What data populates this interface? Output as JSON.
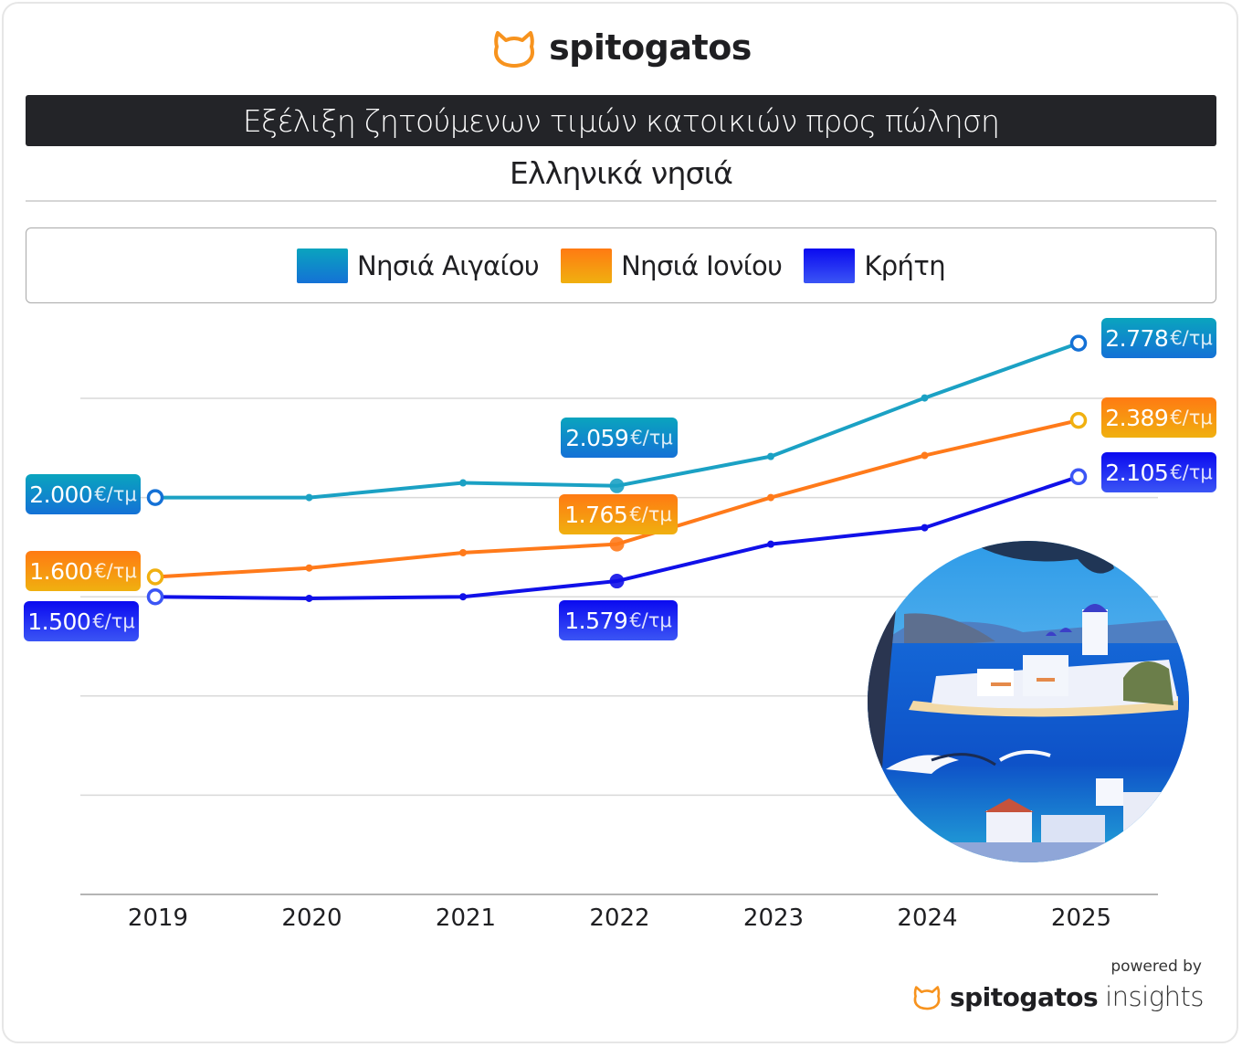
{
  "brand": {
    "name": "spitogatos",
    "logo_icon": "cat-head-icon",
    "accent": "#F7931E"
  },
  "header": {
    "title": "Εξέλιξη ζητούμενων τιμών κατοικιών προς πώληση",
    "subtitle": "Ελληνικά νησιά"
  },
  "footer": {
    "powered_by": "powered by",
    "brand_bold": "spitogatos",
    "brand_light": "insights"
  },
  "illustration": {
    "description": "Greek island village with blue domes and seagulls",
    "icon": "island-illustration"
  },
  "chart_data": {
    "type": "line",
    "title": "Εξέλιξη ζητούμενων τιμών κατοικιών προς πώληση",
    "subtitle": "Ελληνικά νησιά",
    "xlabel": "",
    "ylabel": "",
    "unit": "€/τμ",
    "x": [
      "2019",
      "2020",
      "2021",
      "2022",
      "2023",
      "2024",
      "2025"
    ],
    "ylim": [
      0,
      3000
    ],
    "y_gridlines": [
      0,
      500,
      1000,
      1500,
      2000,
      2500
    ],
    "y_tick_labels_shown": false,
    "grid": true,
    "legend_position": "top-center",
    "series": [
      {
        "name": "Νησιά Αιγαίου",
        "color": "#1BA1C4",
        "gradient": [
          "#0AA4BE",
          "#1471D6"
        ],
        "values": [
          2000,
          2000,
          2074,
          2059,
          2207,
          2502,
          2778
        ],
        "labels": [
          {
            "index": 0,
            "text": "2.000",
            "unit": "€/τμ"
          },
          {
            "index": 3,
            "text": "2.059",
            "unit": "€/τμ"
          },
          {
            "index": 6,
            "text": "2.778",
            "unit": "€/τμ"
          }
        ]
      },
      {
        "name": "Νησιά Ιονίου",
        "color": "#FF7A1A",
        "gradient": [
          "#FF7A12",
          "#F0B010"
        ],
        "values": [
          1600,
          1645,
          1722,
          1765,
          2000,
          2212,
          2389
        ],
        "labels": [
          {
            "index": 0,
            "text": "1.600",
            "unit": "€/τμ"
          },
          {
            "index": 3,
            "text": "1.765",
            "unit": "€/τμ"
          },
          {
            "index": 6,
            "text": "2.389",
            "unit": "€/τμ"
          }
        ]
      },
      {
        "name": "Κρήτη",
        "color": "#1010E8",
        "gradient": [
          "#0A0AF0",
          "#3B55F5"
        ],
        "values": [
          1500,
          1492,
          1500,
          1579,
          1765,
          1848,
          2105
        ],
        "labels": [
          {
            "index": 0,
            "text": "1.500",
            "unit": "€/τμ"
          },
          {
            "index": 3,
            "text": "1.579",
            "unit": "€/τμ"
          },
          {
            "index": 6,
            "text": "2.105",
            "unit": "€/τμ"
          }
        ]
      }
    ]
  }
}
